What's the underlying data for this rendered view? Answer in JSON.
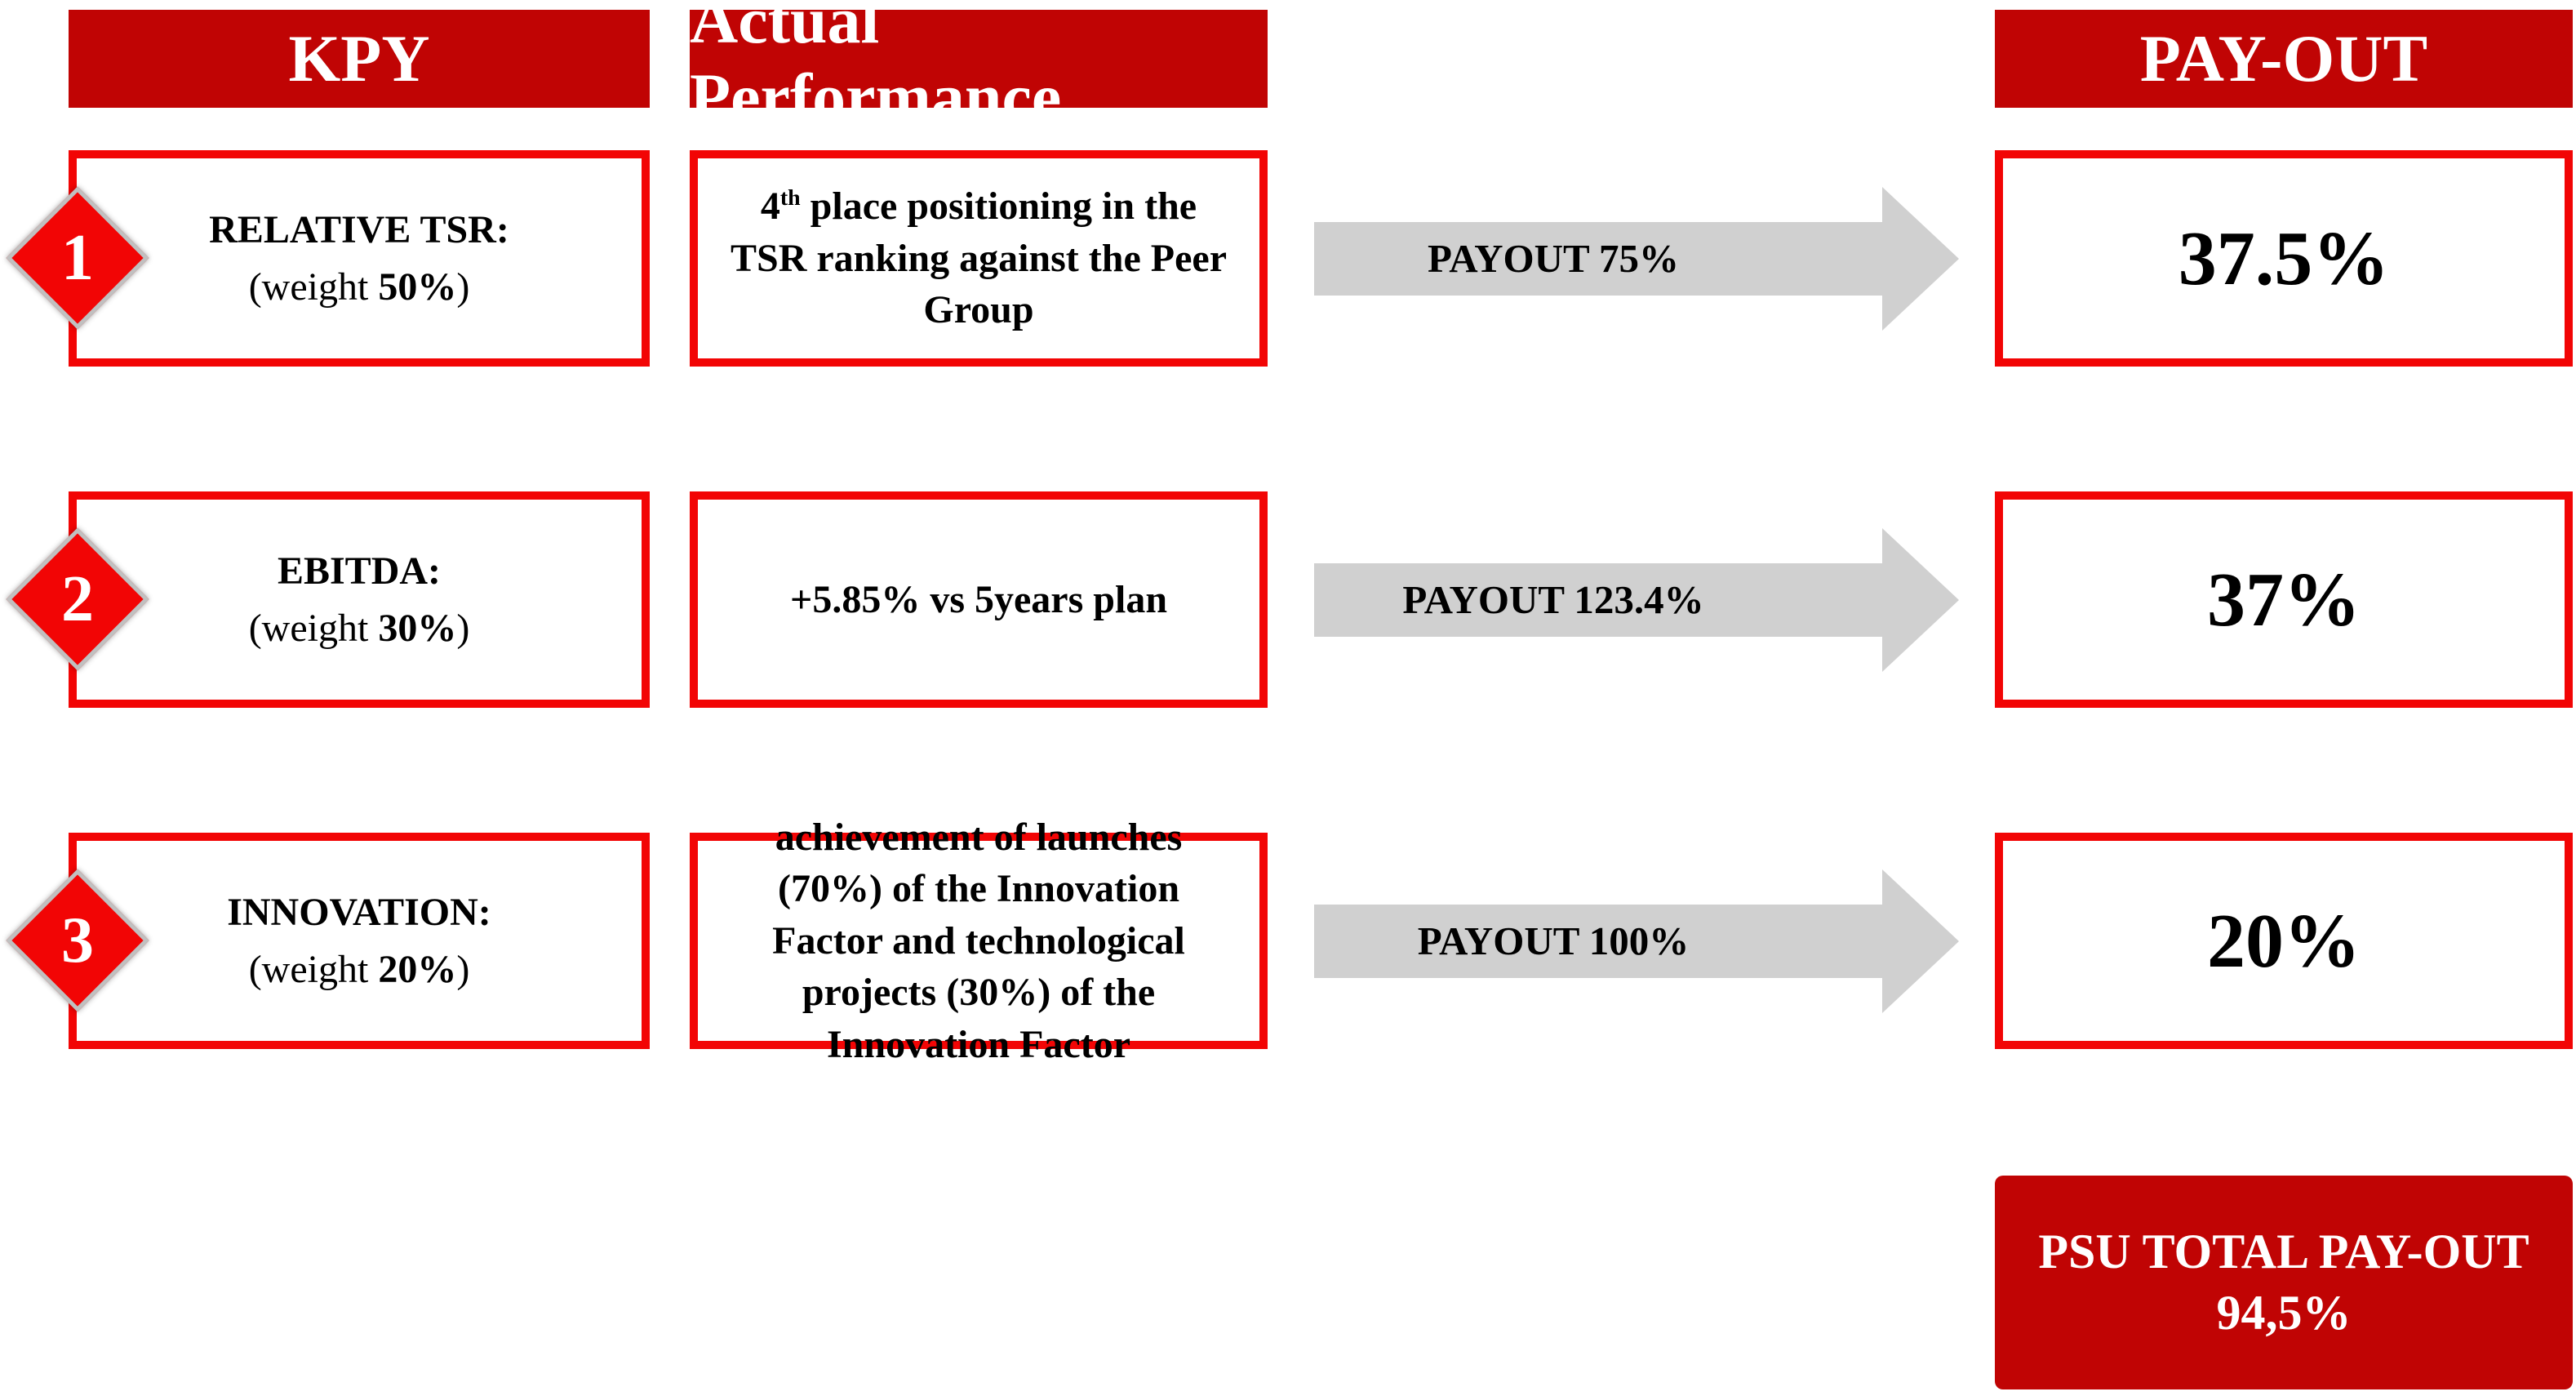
{
  "headers": {
    "kpi": "KPY",
    "actual_performance": "Actual Performance",
    "payout": "PAY-OUT"
  },
  "rows": [
    {
      "number": "1",
      "kpi_name": "RELATIVE TSR:",
      "weight_prefix": "(weight ",
      "weight_value": "50%",
      "weight_close": ")",
      "perf_prefix": "4",
      "perf_sup": "th",
      "perf_text": " place positioning in the TSR ranking against the Peer Group",
      "arrow_label": "PAYOUT 75%",
      "payout_value": "37.5%"
    },
    {
      "number": "2",
      "kpi_name": "EBITDA:",
      "weight_prefix": "(weight ",
      "weight_value": "30%",
      "weight_close": ")",
      "perf_prefix": "",
      "perf_sup": "",
      "perf_text": "+5.85% vs 5years plan",
      "arrow_label": "PAYOUT 123.4%",
      "payout_value": "37%"
    },
    {
      "number": "3",
      "kpi_name": "INNOVATION:",
      "weight_prefix": "(weight ",
      "weight_value": "20%",
      "weight_close": ")",
      "perf_prefix": "",
      "perf_sup": "",
      "perf_text": "achievement of launches (70%) of the Innovation Factor and technological projects (30%) of the Innovation Factor",
      "arrow_label": "PAYOUT 100%",
      "payout_value": "20%"
    }
  ],
  "total_box": {
    "line1": "PSU TOTAL PAY-OUT",
    "line2": "94,5%"
  },
  "colors": {
    "header_red": "#C00404",
    "accent_red": "#F20505",
    "arrow_gray": "#D0D0D0",
    "diamond_border_gray": "#C0C0C0"
  }
}
